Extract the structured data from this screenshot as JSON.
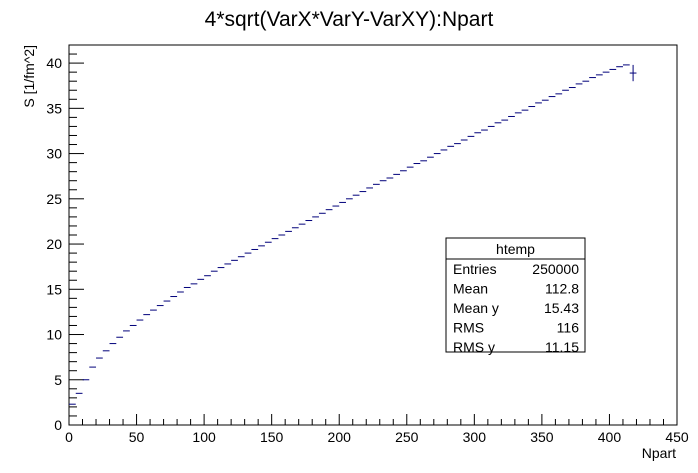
{
  "chart_data": {
    "type": "profile",
    "title": "4*sqrt(VarX*VarY-VarXY):Npart",
    "xlabel": "Npart",
    "ylabel": "S [1/fm^2]",
    "xlim": [
      0,
      450
    ],
    "ylim": [
      0,
      42
    ],
    "x_ticks": [
      0,
      50,
      100,
      150,
      200,
      250,
      300,
      350,
      400,
      450
    ],
    "y_ticks": [
      0,
      5,
      10,
      15,
      20,
      25,
      30,
      35,
      40
    ],
    "bin_width": 5,
    "grid": false,
    "marker_color": "#00007a",
    "points": [
      [
        2.5,
        2.3
      ],
      [
        7.5,
        3.5
      ],
      [
        12.5,
        5.0
      ],
      [
        17.5,
        6.4
      ],
      [
        22.5,
        7.4
      ],
      [
        27.5,
        8.2
      ],
      [
        32.5,
        9.0
      ],
      [
        37.5,
        9.7
      ],
      [
        42.5,
        10.4
      ],
      [
        47.5,
        11.0
      ],
      [
        52.5,
        11.6
      ],
      [
        57.5,
        12.2
      ],
      [
        62.5,
        12.7
      ],
      [
        67.5,
        13.2
      ],
      [
        72.5,
        13.7
      ],
      [
        77.5,
        14.2
      ],
      [
        82.5,
        14.7
      ],
      [
        87.5,
        15.2
      ],
      [
        92.5,
        15.6
      ],
      [
        97.5,
        16.1
      ],
      [
        102.5,
        16.5
      ],
      [
        107.5,
        17.0
      ],
      [
        112.5,
        17.4
      ],
      [
        117.5,
        17.8
      ],
      [
        122.5,
        18.2
      ],
      [
        127.5,
        18.6
      ],
      [
        132.5,
        19.0
      ],
      [
        137.5,
        19.4
      ],
      [
        142.5,
        19.8
      ],
      [
        147.5,
        20.2
      ],
      [
        152.5,
        20.6
      ],
      [
        157.5,
        21.0
      ],
      [
        162.5,
        21.4
      ],
      [
        167.5,
        21.8
      ],
      [
        172.5,
        22.2
      ],
      [
        177.5,
        22.6
      ],
      [
        182.5,
        23.0
      ],
      [
        187.5,
        23.4
      ],
      [
        192.5,
        23.8
      ],
      [
        197.5,
        24.2
      ],
      [
        202.5,
        24.6
      ],
      [
        207.5,
        25.0
      ],
      [
        212.5,
        25.4
      ],
      [
        217.5,
        25.8
      ],
      [
        222.5,
        26.2
      ],
      [
        227.5,
        26.6
      ],
      [
        232.5,
        27.0
      ],
      [
        237.5,
        27.3
      ],
      [
        242.5,
        27.7
      ],
      [
        247.5,
        28.1
      ],
      [
        252.5,
        28.5
      ],
      [
        257.5,
        28.9
      ],
      [
        262.5,
        29.2
      ],
      [
        267.5,
        29.6
      ],
      [
        272.5,
        30.0
      ],
      [
        277.5,
        30.4
      ],
      [
        282.5,
        30.8
      ],
      [
        287.5,
        31.1
      ],
      [
        292.5,
        31.5
      ],
      [
        297.5,
        31.9
      ],
      [
        302.5,
        32.3
      ],
      [
        307.5,
        32.6
      ],
      [
        312.5,
        33.0
      ],
      [
        317.5,
        33.4
      ],
      [
        322.5,
        33.7
      ],
      [
        327.5,
        34.1
      ],
      [
        332.5,
        34.5
      ],
      [
        337.5,
        34.8
      ],
      [
        342.5,
        35.2
      ],
      [
        347.5,
        35.6
      ],
      [
        352.5,
        35.9
      ],
      [
        357.5,
        36.3
      ],
      [
        362.5,
        36.6
      ],
      [
        367.5,
        37.0
      ],
      [
        372.5,
        37.3
      ],
      [
        377.5,
        37.7
      ],
      [
        382.5,
        38.0
      ],
      [
        387.5,
        38.4
      ],
      [
        392.5,
        38.7
      ],
      [
        397.5,
        39.0
      ],
      [
        402.5,
        39.3
      ],
      [
        407.5,
        39.6
      ],
      [
        412.5,
        39.8
      ],
      [
        417.5,
        38.9
      ]
    ],
    "last_point_error": 0.9,
    "stats_box": {
      "title": "htemp",
      "rows": [
        {
          "label": "Entries",
          "value": "250000"
        },
        {
          "label": "Mean",
          "value": "112.8"
        },
        {
          "label": "Mean y",
          "value": "15.43"
        },
        {
          "label": "RMS",
          "value": "116"
        },
        {
          "label": "RMS y",
          "value": "11.15"
        }
      ]
    }
  }
}
